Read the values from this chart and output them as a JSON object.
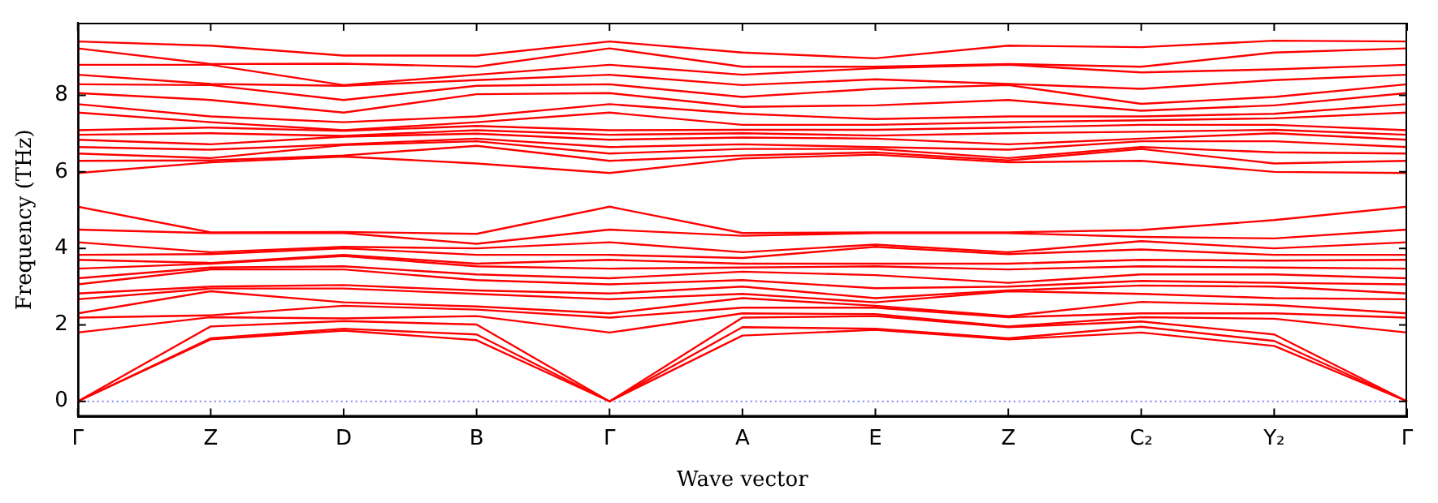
{
  "chart_data": {
    "type": "line",
    "xlabel": "Wave vector",
    "ylabel": "Frequency (THz)",
    "marker": "none",
    "grid": false,
    "categories": [
      "Γ",
      "Z",
      "D",
      "B",
      "Γ",
      "A",
      "E",
      "Z",
      "C₂",
      "Y₂",
      "Γ"
    ],
    "ylim": [
      -0.4,
      9.9
    ],
    "yticks": [
      0,
      2,
      4,
      6,
      8
    ],
    "ref_lines": [
      {
        "axis": "y",
        "value": 0,
        "color": "#8080ff",
        "line_style": "dotted"
      }
    ],
    "series": [
      {
        "color": "#ff0000",
        "values": [
          0,
          1.62,
          1.85,
          1.6,
          0,
          1.72,
          1.87,
          1.62,
          1.8,
          1.45,
          0
        ]
      },
      {
        "color": "#ff0000",
        "values": [
          0,
          1.65,
          1.9,
          1.75,
          0,
          1.94,
          1.9,
          1.65,
          1.95,
          1.58,
          0
        ]
      },
      {
        "color": "#ff0000",
        "values": [
          0,
          1.96,
          2.1,
          2.01,
          0,
          2.19,
          2.23,
          1.94,
          2.09,
          1.75,
          0
        ]
      },
      {
        "color": "#ff0000",
        "values": [
          1.8,
          2.2,
          2.17,
          2.23,
          1.8,
          2.3,
          2.28,
          1.96,
          2.2,
          2.16,
          1.8
        ]
      },
      {
        "color": "#ff0000",
        "values": [
          2.19,
          2.25,
          2.5,
          2.4,
          2.19,
          2.45,
          2.45,
          2.2,
          2.3,
          2.3,
          2.19
        ]
      },
      {
        "color": "#ff0000",
        "values": [
          2.3,
          2.88,
          2.59,
          2.48,
          2.3,
          2.7,
          2.5,
          2.23,
          2.6,
          2.52,
          2.3
        ]
      },
      {
        "color": "#ff0000",
        "values": [
          2.67,
          2.95,
          2.95,
          2.81,
          2.67,
          2.81,
          2.59,
          2.88,
          2.81,
          2.7,
          2.67
        ]
      },
      {
        "color": "#ff0000",
        "values": [
          2.82,
          3.0,
          3.04,
          2.9,
          2.82,
          3.0,
          2.7,
          2.9,
          3.03,
          3.0,
          2.82
        ]
      },
      {
        "color": "#ff0000",
        "values": [
          3.06,
          3.45,
          3.45,
          3.17,
          3.06,
          3.17,
          2.96,
          3.0,
          3.15,
          3.1,
          3.06
        ]
      },
      {
        "color": "#ff0000",
        "values": [
          3.22,
          3.5,
          3.53,
          3.32,
          3.22,
          3.39,
          3.3,
          3.1,
          3.32,
          3.32,
          3.22
        ]
      },
      {
        "color": "#ff0000",
        "values": [
          3.47,
          3.6,
          3.8,
          3.53,
          3.47,
          3.5,
          3.53,
          3.45,
          3.53,
          3.5,
          3.47
        ]
      },
      {
        "color": "#ff0000",
        "values": [
          3.7,
          3.62,
          3.83,
          3.6,
          3.7,
          3.6,
          3.6,
          3.6,
          3.7,
          3.68,
          3.7
        ]
      },
      {
        "color": "#ff0000",
        "values": [
          3.83,
          3.85,
          4.0,
          3.83,
          3.83,
          3.75,
          4.04,
          3.85,
          3.97,
          3.83,
          3.83
        ]
      },
      {
        "color": "#ff0000",
        "values": [
          4.16,
          3.9,
          4.04,
          4.0,
          4.16,
          3.9,
          4.1,
          3.9,
          4.19,
          4.0,
          4.16
        ]
      },
      {
        "color": "#ff0000",
        "values": [
          4.49,
          4.4,
          4.4,
          4.12,
          4.49,
          4.33,
          4.4,
          4.4,
          4.3,
          4.26,
          4.49
        ]
      },
      {
        "color": "#ff0000",
        "values": [
          5.09,
          4.42,
          4.43,
          4.38,
          5.09,
          4.4,
          4.42,
          4.42,
          4.48,
          4.74,
          5.09
        ]
      },
      {
        "color": "#ff0000",
        "values": [
          5.97,
          6.25,
          6.4,
          6.22,
          5.97,
          6.35,
          6.45,
          6.25,
          6.29,
          6.0,
          5.97
        ]
      },
      {
        "color": "#ff0000",
        "values": [
          6.29,
          6.3,
          6.43,
          6.68,
          6.29,
          6.43,
          6.51,
          6.3,
          6.6,
          6.22,
          6.29
        ]
      },
      {
        "color": "#ff0000",
        "values": [
          6.48,
          6.36,
          6.7,
          6.8,
          6.48,
          6.6,
          6.6,
          6.36,
          6.65,
          6.51,
          6.48
        ]
      },
      {
        "color": "#ff0000",
        "values": [
          6.65,
          6.58,
          6.72,
          6.87,
          6.65,
          6.72,
          6.65,
          6.58,
          6.8,
          6.8,
          6.65
        ]
      },
      {
        "color": "#ff0000",
        "values": [
          6.84,
          6.72,
          6.92,
          7.0,
          6.84,
          6.9,
          6.87,
          6.72,
          6.87,
          7.01,
          6.84
        ]
      },
      {
        "color": "#ff0000",
        "values": [
          6.97,
          7.01,
          6.94,
          7.09,
          6.97,
          7.01,
          6.95,
          7.01,
          7.05,
          7.1,
          6.97
        ]
      },
      {
        "color": "#ff0000",
        "values": [
          7.09,
          7.16,
          7.07,
          7.2,
          7.09,
          7.1,
          7.1,
          7.16,
          7.23,
          7.23,
          7.09
        ]
      },
      {
        "color": "#ff0000",
        "values": [
          7.55,
          7.3,
          7.09,
          7.3,
          7.55,
          7.23,
          7.23,
          7.3,
          7.35,
          7.4,
          7.55
        ]
      },
      {
        "color": "#ff0000",
        "values": [
          7.77,
          7.45,
          7.3,
          7.45,
          7.77,
          7.52,
          7.38,
          7.45,
          7.45,
          7.52,
          7.77
        ]
      },
      {
        "color": "#ff0000",
        "values": [
          8.06,
          7.88,
          7.55,
          8.03,
          8.06,
          7.7,
          7.74,
          7.88,
          7.6,
          7.74,
          8.06
        ]
      },
      {
        "color": "#ff0000",
        "values": [
          8.29,
          8.27,
          7.88,
          8.25,
          8.29,
          7.96,
          8.17,
          8.27,
          7.78,
          7.96,
          8.29
        ]
      },
      {
        "color": "#ff0000",
        "values": [
          8.54,
          8.3,
          8.25,
          8.4,
          8.54,
          8.27,
          8.42,
          8.3,
          8.17,
          8.4,
          8.54
        ]
      },
      {
        "color": "#ff0000",
        "values": [
          8.8,
          8.8,
          8.27,
          8.54,
          8.8,
          8.54,
          8.71,
          8.8,
          8.6,
          8.68,
          8.8
        ]
      },
      {
        "color": "#ff0000",
        "values": [
          9.23,
          8.82,
          8.83,
          8.75,
          9.23,
          8.75,
          8.75,
          8.82,
          8.75,
          9.12,
          9.23
        ]
      },
      {
        "color": "#ff0000",
        "values": [
          9.41,
          9.3,
          9.04,
          9.04,
          9.41,
          9.12,
          8.97,
          9.3,
          9.26,
          9.43,
          9.41
        ]
      }
    ]
  }
}
